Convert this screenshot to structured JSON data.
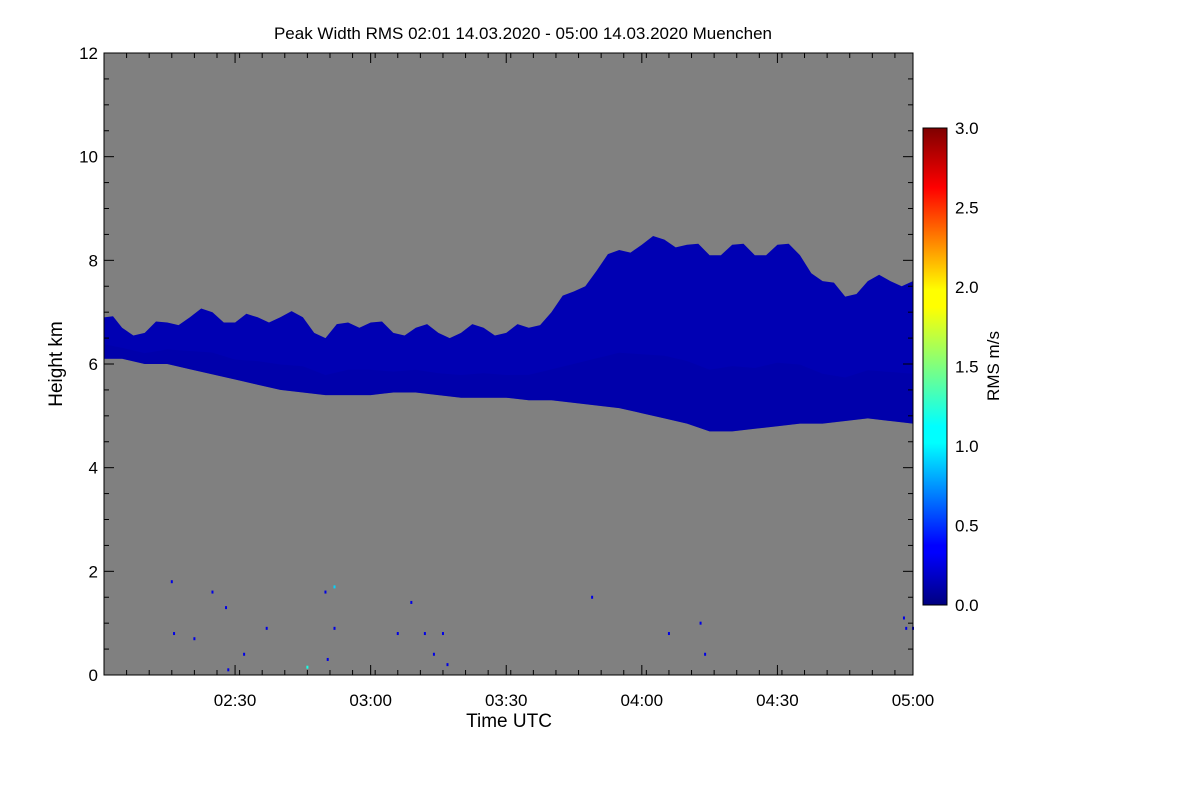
{
  "chart_data": {
    "type": "heatmap",
    "title": "Peak Width RMS   02:01 14.03.2020 - 05:00 14.03.2020 Muenchen",
    "xlabel": "Time UTC",
    "ylabel": "Height km",
    "x_range_min": [
      121,
      300
    ],
    "ylim": [
      0,
      12
    ],
    "x_ticks": [
      {
        "min": 150,
        "label": "02:30"
      },
      {
        "min": 180,
        "label": "03:00"
      },
      {
        "min": 210,
        "label": "03:30"
      },
      {
        "min": 240,
        "label": "04:00"
      },
      {
        "min": 270,
        "label": "04:30"
      },
      {
        "min": 300,
        "label": "05:00"
      }
    ],
    "y_ticks": [
      0,
      2,
      4,
      6,
      8,
      10,
      12
    ],
    "colorbar": {
      "label": "RMS m/s",
      "range": [
        0.0,
        3.0
      ],
      "ticks": [
        "0.0",
        "0.5",
        "1.0",
        "1.5",
        "2.0",
        "2.5",
        "3.0"
      ],
      "colormap": "jet"
    },
    "background_color": "#808080",
    "dominant_value": 0.15,
    "cloud_layer": {
      "time_min": [
        121,
        125,
        130,
        135,
        140,
        145,
        150,
        155,
        160,
        165,
        170,
        175,
        180,
        185,
        190,
        195,
        200,
        205,
        210,
        215,
        220,
        225,
        230,
        235,
        240,
        245,
        250,
        255,
        260,
        265,
        270,
        275,
        280,
        285,
        290,
        295,
        300
      ],
      "top_km": [
        6.9,
        6.7,
        6.6,
        6.8,
        6.9,
        7.0,
        6.8,
        6.9,
        6.9,
        6.9,
        6.5,
        6.8,
        6.8,
        6.6,
        6.7,
        6.6,
        6.6,
        6.7,
        6.6,
        6.7,
        7.0,
        7.4,
        7.8,
        8.2,
        8.3,
        8.4,
        8.3,
        8.1,
        8.3,
        8.1,
        8.3,
        8.1,
        7.6,
        7.3,
        7.6,
        7.6,
        7.6
      ],
      "base_km": [
        6.1,
        6.1,
        6.0,
        6.0,
        5.9,
        5.8,
        5.7,
        5.6,
        5.5,
        5.45,
        5.4,
        5.4,
        5.4,
        5.45,
        5.45,
        5.4,
        5.35,
        5.35,
        5.35,
        5.3,
        5.3,
        5.25,
        5.2,
        5.15,
        5.05,
        4.95,
        4.85,
        4.7,
        4.7,
        4.75,
        4.8,
        4.85,
        4.85,
        4.9,
        4.95,
        4.9,
        4.85
      ],
      "value": 0.15
    },
    "scatter_pixels": [
      {
        "t": 136,
        "h": 1.8,
        "v": 0.3
      },
      {
        "t": 136.5,
        "h": 0.8,
        "v": 0.3
      },
      {
        "t": 141,
        "h": 0.7,
        "v": 0.3
      },
      {
        "t": 145,
        "h": 1.6,
        "v": 0.3
      },
      {
        "t": 148,
        "h": 1.3,
        "v": 0.3
      },
      {
        "t": 148.5,
        "h": 0.1,
        "v": 0.3
      },
      {
        "t": 152,
        "h": 0.4,
        "v": 0.3
      },
      {
        "t": 157,
        "h": 0.9,
        "v": 0.3
      },
      {
        "t": 170,
        "h": 1.6,
        "v": 0.3
      },
      {
        "t": 170.5,
        "h": 0.3,
        "v": 0.3
      },
      {
        "t": 172,
        "h": 1.7,
        "v": 1.0
      },
      {
        "t": 166,
        "h": 0.15,
        "v": 1.2
      },
      {
        "t": 172,
        "h": 0.9,
        "v": 0.3
      },
      {
        "t": 186,
        "h": 0.8,
        "v": 0.3
      },
      {
        "t": 189,
        "h": 1.4,
        "v": 0.3
      },
      {
        "t": 192,
        "h": 0.8,
        "v": 0.3
      },
      {
        "t": 194,
        "h": 0.4,
        "v": 0.3
      },
      {
        "t": 196,
        "h": 0.8,
        "v": 0.3
      },
      {
        "t": 197,
        "h": 0.2,
        "v": 0.3
      },
      {
        "t": 229,
        "h": 1.5,
        "v": 0.3
      },
      {
        "t": 246,
        "h": 0.8,
        "v": 0.3
      },
      {
        "t": 253,
        "h": 1.0,
        "v": 0.3
      },
      {
        "t": 254,
        "h": 0.4,
        "v": 0.3
      },
      {
        "t": 298,
        "h": 1.1,
        "v": 0.3
      },
      {
        "t": 298.5,
        "h": 0.9,
        "v": 0.3
      },
      {
        "t": 300,
        "h": 0.9,
        "v": 0.3
      }
    ]
  }
}
